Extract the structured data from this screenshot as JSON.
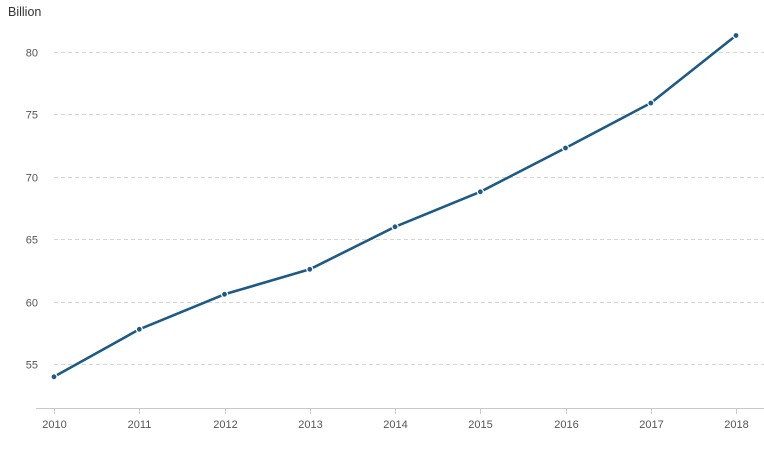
{
  "chart_data": {
    "type": "line",
    "title": "",
    "ylabel": "Billion",
    "xlabel": "",
    "x": [
      "2010",
      "2011",
      "2012",
      "2013",
      "2014",
      "2015",
      "2016",
      "2017",
      "2018"
    ],
    "series": [
      {
        "values": [
          54.0,
          57.8,
          60.6,
          62.6,
          66.0,
          68.8,
          72.3,
          75.9,
          81.3
        ]
      }
    ],
    "y_ticks": [
      55,
      60,
      65,
      70,
      75,
      80
    ],
    "ylim": [
      51.5,
      83.5
    ],
    "grid": true,
    "legend": "none",
    "colors": {
      "series": "#1d5a85",
      "grid": "#d6d6d6",
      "axis": "#c9c9c9"
    }
  }
}
